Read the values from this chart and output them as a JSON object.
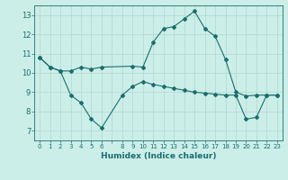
{
  "xlabel": "Humidex (Indice chaleur)",
  "bg_color": "#cceee8",
  "grid_color": "#b0d8d0",
  "line_color": "#1a6e6e",
  "xlim": [
    -0.5,
    23.5
  ],
  "ylim": [
    6.5,
    13.5
  ],
  "xticks": [
    0,
    1,
    2,
    3,
    4,
    5,
    6,
    7,
    8,
    9,
    10,
    11,
    12,
    13,
    14,
    15,
    16,
    17,
    18,
    19,
    20,
    21,
    22,
    23
  ],
  "xtick_labels": [
    "0",
    "1",
    "2",
    "3",
    "4",
    "5",
    "6",
    "",
    "8",
    "9",
    "10",
    "11",
    "12",
    "13",
    "14",
    "15",
    "16",
    "17",
    "18",
    "19",
    "20",
    "21",
    "22",
    "23"
  ],
  "yticks": [
    7,
    8,
    9,
    10,
    11,
    12,
    13
  ],
  "series1_x": [
    0,
    1,
    2,
    3,
    4,
    5,
    6,
    9,
    10,
    11,
    12,
    13,
    14,
    15,
    16,
    17,
    18,
    19,
    20,
    21,
    22,
    23
  ],
  "series1_y": [
    10.8,
    10.3,
    10.1,
    10.1,
    10.3,
    10.2,
    10.3,
    10.35,
    10.3,
    11.6,
    12.3,
    12.4,
    12.8,
    13.2,
    12.3,
    11.9,
    10.7,
    9.0,
    8.8,
    8.85,
    8.85,
    8.85
  ],
  "series2_x": [
    0,
    1,
    2,
    3,
    4,
    5,
    6,
    8,
    9,
    10,
    11,
    12,
    13,
    14,
    15,
    16,
    17,
    18,
    19,
    20,
    21,
    22,
    23
  ],
  "series2_y": [
    10.8,
    10.3,
    10.1,
    8.85,
    8.45,
    7.6,
    7.15,
    8.85,
    9.3,
    9.55,
    9.4,
    9.3,
    9.2,
    9.1,
    9.0,
    8.95,
    8.9,
    8.85,
    8.85,
    7.6,
    7.7,
    8.85,
    8.85
  ]
}
